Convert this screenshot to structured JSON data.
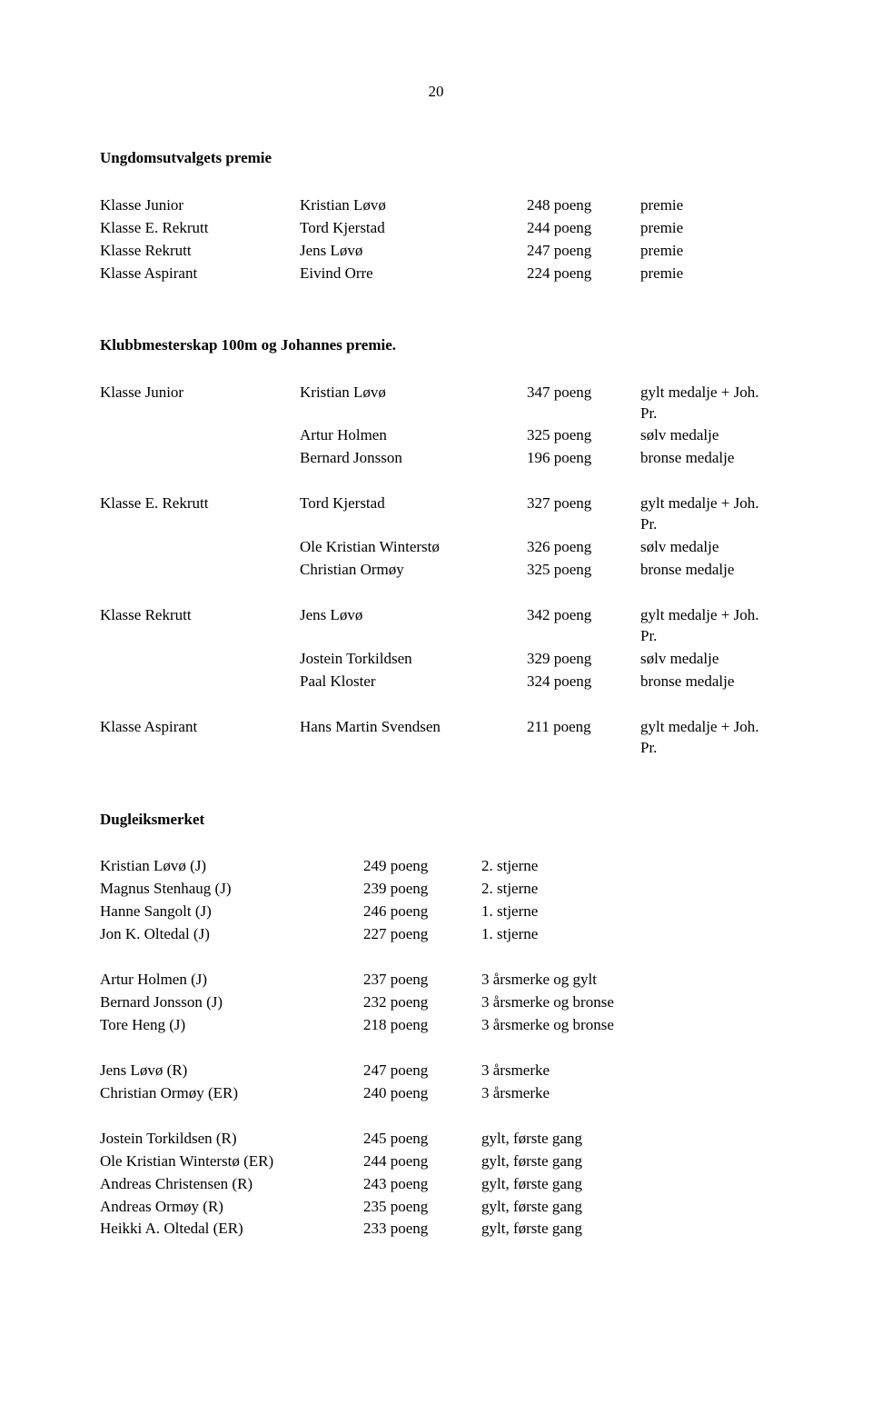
{
  "page_number": "20",
  "sec1": {
    "title": "Ungdomsutvalgets premie",
    "rows": [
      {
        "c1": "Klasse Junior",
        "c2": "Kristian Løvø",
        "c3": "248 poeng",
        "c4": "premie"
      },
      {
        "c1": "Klasse E. Rekrutt",
        "c2": "Tord Kjerstad",
        "c3": "244 poeng",
        "c4": "premie"
      },
      {
        "c1": "Klasse Rekrutt",
        "c2": "Jens Løvø",
        "c3": "247 poeng",
        "c4": "premie"
      },
      {
        "c1": "Klasse Aspirant",
        "c2": "Eivind Orre",
        "c3": "224 poeng",
        "c4": "premie"
      }
    ]
  },
  "sec2": {
    "title": "Klubbmesterskap 100m og Johannes premie.",
    "groups": [
      [
        {
          "c1": "Klasse Junior",
          "c2": "Kristian Løvø",
          "c3": "347 poeng",
          "c4": "gylt medalje + Joh. Pr."
        },
        {
          "c1": "",
          "c2": "Artur Holmen",
          "c3": "325 poeng",
          "c4": "sølv medalje"
        },
        {
          "c1": "",
          "c2": "Bernard Jonsson",
          "c3": "196 poeng",
          "c4": "bronse medalje"
        }
      ],
      [
        {
          "c1": "Klasse E. Rekrutt",
          "c2": "Tord Kjerstad",
          "c3": "327 poeng",
          "c4": "gylt medalje + Joh. Pr."
        },
        {
          "c1": "",
          "c2": "Ole Kristian Winterstø",
          "c3": "326 poeng",
          "c4": "sølv medalje"
        },
        {
          "c1": "",
          "c2": "Christian Ormøy",
          "c3": "325 poeng",
          "c4": "bronse medalje"
        }
      ],
      [
        {
          "c1": "Klasse Rekrutt",
          "c2": "Jens Løvø",
          "c3": "342 poeng",
          "c4": "gylt medalje + Joh. Pr."
        },
        {
          "c1": "",
          "c2": "Jostein Torkildsen",
          "c3": "329 poeng",
          "c4": "sølv medalje"
        },
        {
          "c1": "",
          "c2": "Paal Kloster",
          "c3": "324 poeng",
          "c4": "bronse medalje"
        }
      ],
      [
        {
          "c1": "Klasse Aspirant",
          "c2": "Hans Martin Svendsen",
          "c3": "211 poeng",
          "c4": "gylt medalje + Joh. Pr."
        }
      ]
    ]
  },
  "sec3": {
    "title": "Dugleiksmerket",
    "groups": [
      [
        {
          "c1": "Kristian Løvø  (J)",
          "c2": "249 poeng",
          "c3": "2. stjerne"
        },
        {
          "c1": "Magnus Stenhaug (J)",
          "c2": "239 poeng",
          "c3": "2. stjerne"
        },
        {
          "c1": "Hanne Sangolt (J)",
          "c2": "246 poeng",
          "c3": "1. stjerne"
        },
        {
          "c1": "Jon K. Oltedal (J)",
          "c2": "227 poeng",
          "c3": "1. stjerne"
        }
      ],
      [
        {
          "c1": "Artur Holmen (J)",
          "c2": "237 poeng",
          "c3": "3 årsmerke og gylt"
        },
        {
          "c1": "Bernard Jonsson (J)",
          "c2": "232 poeng",
          "c3": "3 årsmerke og bronse"
        },
        {
          "c1": "Tore Heng (J)",
          "c2": "218 poeng",
          "c3": "3 årsmerke og bronse"
        }
      ],
      [
        {
          "c1": "Jens Løvø (R)",
          "c2": "247 poeng",
          "c3": "3 årsmerke"
        },
        {
          "c1": "Christian Ormøy (ER)",
          "c2": "240 poeng",
          "c3": "3 årsmerke"
        }
      ],
      [
        {
          "c1": "Jostein Torkildsen (R)",
          "c2": "245 poeng",
          "c3": "gylt, første gang"
        },
        {
          "c1": "Ole Kristian Winterstø (ER)",
          "c2": "244 poeng",
          "c3": "gylt, første gang"
        },
        {
          "c1": "Andreas Christensen   (R)",
          "c2": "243 poeng",
          "c3": "gylt, første gang"
        },
        {
          "c1": "Andreas Ormøy (R)",
          "c2": "235 poeng",
          "c3": "gylt, første gang"
        },
        {
          "c1": "Heikki A. Oltedal (ER)",
          "c2": "233 poeng",
          "c3": "gylt, første gang"
        }
      ]
    ]
  }
}
